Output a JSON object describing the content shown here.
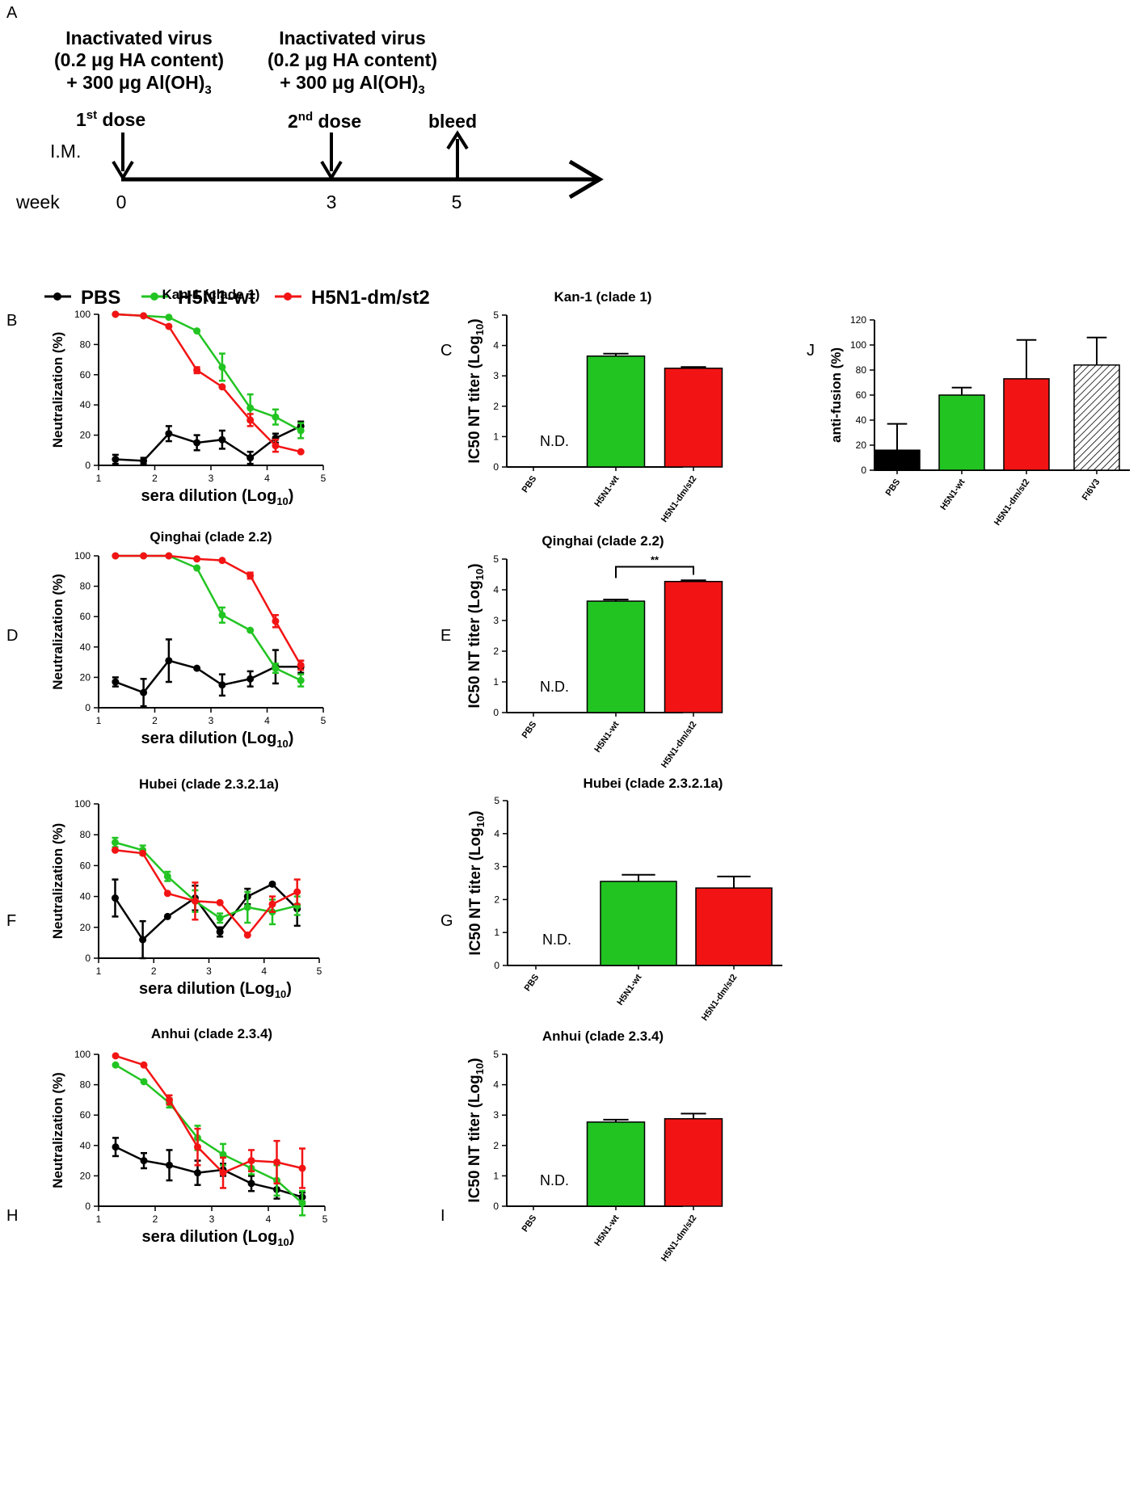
{
  "panel_letters": {
    "a": "A",
    "b": "B",
    "c": "C",
    "d": "D",
    "e": "E",
    "f": "F",
    "g": "G",
    "h": "H",
    "i": "I",
    "j": "J"
  },
  "timeline": {
    "vaccine_line1": "Inactivated virus",
    "vaccine_line2": "(0.2 μg HA content)",
    "vaccine_line3": "+ 300 μg Al(OH)",
    "vaccine_sub": "3",
    "dose1": {
      "pre": "1",
      "sup": "st",
      "post": " dose"
    },
    "dose2": {
      "pre": "2",
      "sup": "nd",
      "post": "  dose"
    },
    "bleed": "bleed",
    "route": "I.M.",
    "week_label": "week",
    "weeks": [
      "0",
      "3",
      "5"
    ]
  },
  "legend": {
    "pbs": "PBS",
    "wt": "H5N1-wt",
    "dm": "H5N1-dm/st2"
  },
  "colors": {
    "pbs": "#000000",
    "wt": "#22c422",
    "dm": "#f21414",
    "fi6v3": "#ffffff"
  },
  "chart_data": [
    {
      "id": "B",
      "type": "line",
      "title": "Kan-1 (clade 1)",
      "xlabel": "sera dilution (Log",
      "xlabel_sub": "10",
      "xlabel_end": ")",
      "ylabel": "Neutralization (%)",
      "xlim": [
        1,
        5
      ],
      "ylim": [
        0,
        100
      ],
      "xticks": [
        "1",
        "2",
        "3",
        "4",
        "5"
      ],
      "yticks": [
        "0",
        "20",
        "40",
        "60",
        "80",
        "100"
      ],
      "x": [
        1.3,
        1.8,
        2.25,
        2.75,
        3.2,
        3.7,
        4.15,
        4.6
      ],
      "series": [
        {
          "name": "PBS",
          "values": [
            4,
            3,
            21,
            15,
            17,
            5,
            18,
            26
          ],
          "err": [
            3,
            2,
            5,
            5,
            6,
            4,
            3,
            3
          ]
        },
        {
          "name": "H5N1-wt",
          "values": [
            100,
            99,
            98,
            89,
            65,
            38,
            32,
            23
          ],
          "err": [
            0,
            0,
            0,
            0,
            9,
            9,
            5,
            5
          ]
        },
        {
          "name": "H5N1-dm/st2",
          "values": [
            100,
            99,
            92,
            63,
            52,
            30,
            13,
            9
          ],
          "err": [
            0,
            0,
            0,
            2,
            0,
            4,
            4,
            0
          ]
        }
      ]
    },
    {
      "id": "D",
      "type": "line",
      "title": "Qinghai (clade 2.2)",
      "xlabel": "sera dilution (Log",
      "xlabel_sub": "10",
      "xlabel_end": ")",
      "ylabel": "Neutralization (%)",
      "xlim": [
        1,
        5
      ],
      "ylim": [
        0,
        100
      ],
      "xticks": [
        "1",
        "2",
        "3",
        "4",
        "5"
      ],
      "yticks": [
        "0",
        "20",
        "40",
        "60",
        "80",
        "100"
      ],
      "x": [
        1.3,
        1.8,
        2.25,
        2.75,
        3.2,
        3.7,
        4.15,
        4.6
      ],
      "series": [
        {
          "name": "PBS",
          "values": [
            17,
            10,
            31,
            26,
            15,
            19,
            27,
            27
          ],
          "err": [
            3,
            9,
            14,
            0,
            7,
            5,
            11,
            4
          ]
        },
        {
          "name": "H5N1-wt",
          "values": [
            100,
            100,
            100,
            92,
            61,
            51,
            26,
            18
          ],
          "err": [
            0,
            0,
            0,
            0,
            5,
            0,
            3,
            4
          ]
        },
        {
          "name": "H5N1-dm/st2",
          "values": [
            100,
            100,
            100,
            98,
            97,
            87,
            57,
            28
          ],
          "err": [
            0,
            0,
            0,
            0,
            0,
            2,
            4,
            3
          ]
        }
      ]
    },
    {
      "id": "F",
      "type": "line",
      "title": "Hubei (clade 2.3.2.1a)",
      "xlabel": "sera dilution (Log",
      "xlabel_sub": "10",
      "xlabel_end": ")",
      "ylabel": "Neutralization (%)",
      "xlim": [
        1,
        5
      ],
      "ylim": [
        0,
        100
      ],
      "xticks": [
        "1",
        "2",
        "3",
        "4",
        "5"
      ],
      "yticks": [
        "0",
        "20",
        "40",
        "60",
        "80",
        "100"
      ],
      "x": [
        1.3,
        1.8,
        2.25,
        2.75,
        3.2,
        3.7,
        4.15,
        4.6
      ],
      "series": [
        {
          "name": "PBS",
          "values": [
            39,
            12,
            27,
            39,
            17,
            40,
            48,
            32
          ],
          "err": [
            12,
            12,
            0,
            8,
            3,
            5,
            0,
            11
          ]
        },
        {
          "name": "H5N1-wt",
          "values": [
            75,
            70,
            53,
            37,
            26,
            33,
            30,
            34
          ],
          "err": [
            3,
            3,
            3,
            7,
            3,
            10,
            8,
            6
          ]
        },
        {
          "name": "H5N1-dm/st2",
          "values": [
            70,
            68,
            42,
            37,
            36,
            15,
            35,
            43
          ],
          "err": [
            0,
            0,
            0,
            12,
            0,
            0,
            5,
            8
          ]
        }
      ]
    },
    {
      "id": "H",
      "type": "line",
      "title": "Anhui (clade 2.3.4)",
      "xlabel": "sera dilution (Log",
      "xlabel_sub": "10",
      "xlabel_end": ")",
      "ylabel": "Neutralization (%)",
      "xlim": [
        1,
        5
      ],
      "ylim": [
        0,
        100
      ],
      "xticks": [
        "1",
        "2",
        "3",
        "4",
        "5"
      ],
      "yticks": [
        "0",
        "20",
        "40",
        "60",
        "80",
        "100"
      ],
      "x": [
        1.3,
        1.8,
        2.25,
        2.75,
        3.2,
        3.7,
        4.15,
        4.6
      ],
      "series": [
        {
          "name": "PBS",
          "values": [
            39,
            30,
            27,
            22,
            24,
            15,
            11,
            6
          ],
          "err": [
            6,
            5,
            10,
            8,
            4,
            5,
            6,
            3
          ]
        },
        {
          "name": "H5N1-wt",
          "values": [
            93,
            82,
            68,
            45,
            34,
            25,
            17,
            2
          ],
          "err": [
            0,
            0,
            3,
            8,
            7,
            4,
            10,
            8
          ]
        },
        {
          "name": "H5N1-dm/st2",
          "values": [
            99,
            93,
            70,
            39,
            22,
            30,
            29,
            25
          ],
          "err": [
            0,
            0,
            3,
            12,
            10,
            7,
            14,
            13
          ]
        }
      ]
    },
    {
      "id": "C",
      "type": "bar",
      "title": "Kan-1 (clade 1)",
      "ylabel": "IC50 NT titer (Log",
      "ylabel_sub": "10",
      "ylabel_end": ")",
      "ylim": [
        0,
        5
      ],
      "yticks": [
        "0",
        "1",
        "2",
        "3",
        "4",
        "5"
      ],
      "categories": [
        "PBS",
        "H5N1-wt",
        "H5N1-dm/st2"
      ],
      "values": [
        0,
        3.65,
        3.25
      ],
      "err": [
        0,
        0.08,
        0.04
      ],
      "annotations": {
        "nd": "N.D."
      }
    },
    {
      "id": "E",
      "type": "bar",
      "title": "Qinghai (clade 2.2)",
      "ylabel": "IC50 NT titer (Log",
      "ylabel_sub": "10",
      "ylabel_end": ")",
      "ylim": [
        0,
        5
      ],
      "yticks": [
        "0",
        "1",
        "2",
        "3",
        "4",
        "5"
      ],
      "categories": [
        "PBS",
        "H5N1-wt",
        "H5N1-dm/st2"
      ],
      "values": [
        0,
        3.63,
        4.27
      ],
      "err": [
        0,
        0.05,
        0.04
      ],
      "annotations": {
        "nd": "N.D.",
        "significance": "**"
      }
    },
    {
      "id": "G",
      "type": "bar",
      "title": "Hubei (clade 2.3.2.1a)",
      "ylabel": "IC50 NT titer (Log",
      "ylabel_sub": "10",
      "ylabel_end": ")",
      "ylim": [
        0,
        5
      ],
      "yticks": [
        "0",
        "1",
        "2",
        "3",
        "4",
        "5"
      ],
      "categories": [
        "PBS",
        "H5N1-wt",
        "H5N1-dm/st2"
      ],
      "values": [
        0,
        2.55,
        2.35
      ],
      "err": [
        0,
        0.2,
        0.35
      ],
      "annotations": {
        "nd": "N.D."
      }
    },
    {
      "id": "I",
      "type": "bar",
      "title": "Anhui (clade 2.3.4)",
      "ylabel": "IC50 NT titer (Log",
      "ylabel_sub": "10",
      "ylabel_end": ")",
      "ylim": [
        0,
        5
      ],
      "yticks": [
        "0",
        "1",
        "2",
        "3",
        "4",
        "5"
      ],
      "categories": [
        "PBS",
        "H5N1-wt",
        "H5N1-dm/st2"
      ],
      "values": [
        0,
        2.77,
        2.88
      ],
      "err": [
        0,
        0.08,
        0.17
      ],
      "annotations": {
        "nd": "N.D."
      }
    },
    {
      "id": "J",
      "type": "bar",
      "title": "",
      "ylabel": "anti-fusion (%)",
      "ylim": [
        0,
        120
      ],
      "yticks": [
        "0",
        "20",
        "40",
        "60",
        "80",
        "100",
        "120"
      ],
      "categories": [
        "PBS",
        "H5N1-wt",
        "H5N1-dm/st2",
        "FI6V3"
      ],
      "values": [
        16,
        60,
        73,
        84
      ],
      "err": [
        21,
        6,
        31,
        22
      ],
      "annotations": {}
    }
  ]
}
